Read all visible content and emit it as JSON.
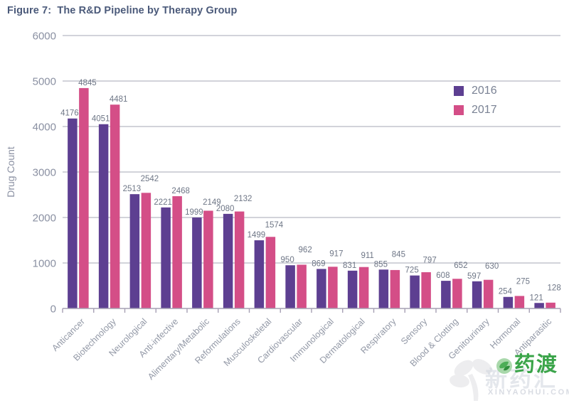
{
  "figure": {
    "title": "Figure 7:  The R&D Pipeline by Therapy Group"
  },
  "legend": {
    "items": [
      {
        "label": "2016",
        "color": "#5D3F91"
      },
      {
        "label": "2017",
        "color": "#D44E87"
      }
    ]
  },
  "chart_data": {
    "type": "bar",
    "title": "Figure 7: The R&D Pipeline by Therapy Group",
    "xlabel": "",
    "ylabel": "Drug Count",
    "ylim": [
      0,
      6000
    ],
    "yticks": [
      0,
      1000,
      2000,
      3000,
      4000,
      5000,
      6000
    ],
    "grid": true,
    "legend_position": "upper right",
    "categories": [
      "Anticancer",
      "Biotechnology",
      "Neurological",
      "Anti-infective",
      "Alimentary/Metabolic",
      "Reformulations",
      "Musculoskeletal",
      "Cardiovascular",
      "Immunological",
      "Dermatological",
      "Respiratory",
      "Sensory",
      "Blood & Clotting",
      "Genitourinary",
      "Hormonal",
      "Antiparasitic"
    ],
    "series": [
      {
        "name": "2016",
        "color": "#5D3F91",
        "values": [
          4176,
          4051,
          2513,
          2221,
          1999,
          2080,
          1499,
          950,
          869,
          831,
          855,
          725,
          608,
          597,
          254,
          121
        ]
      },
      {
        "name": "2017",
        "color": "#D44E87",
        "values": [
          4845,
          4481,
          2542,
          2468,
          2149,
          2132,
          1574,
          962,
          917,
          911,
          845,
          797,
          652,
          630,
          275,
          128
        ]
      }
    ]
  },
  "style": {
    "grid_color": "#B6B9C3",
    "axis_color": "#A6A0B4",
    "tick_text_color": "#8A90A2",
    "value_text_color": "#6E7686",
    "category_text_color": "#9298A6",
    "title_color": "#4B5A7A"
  },
  "watermark": {
    "overlay_text": "新药汇",
    "overlay_subtext": "XINYAOHUI.COM",
    "brand_text": "药渡",
    "brand_color": "#3AA449"
  }
}
